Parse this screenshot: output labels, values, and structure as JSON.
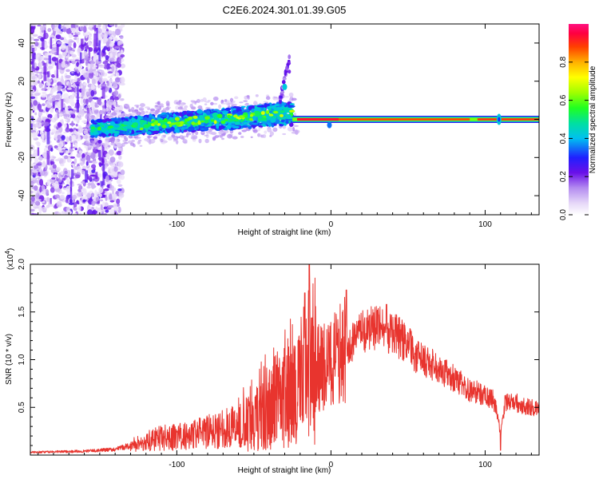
{
  "title": "C2E6.2024.301.01.39.G05",
  "chart_data": [
    {
      "type": "heatmap",
      "xlabel": "Height of straight line (km)",
      "ylabel": "Frequency (Hz)",
      "xlim": [
        -195,
        135
      ],
      "ylim": [
        -50,
        50
      ],
      "xticks": [
        -100,
        0,
        100
      ],
      "yticks": [
        -40,
        -20,
        0,
        20,
        40
      ],
      "colorbar": {
        "label": "Normalized spectral amplitude",
        "range": [
          0,
          1
        ],
        "ticks": [
          0.0,
          0.2,
          0.4,
          0.6,
          0.8
        ],
        "tick_labels": [
          "0.0",
          "0.2",
          "0.4",
          "0.6",
          "0.8"
        ]
      },
      "features": {
        "noise_region_x": [
          -195,
          -135
        ],
        "broad_signal_x": [
          -155,
          -25
        ],
        "broad_signal_center_start_hz": -5,
        "broad_signal_center_end_hz": 3,
        "narrow_line_x": [
          -25,
          135
        ],
        "narrow_line_hz": 0,
        "flare_x": [
          -33,
          -27
        ],
        "flare_hz": [
          10,
          32
        ]
      }
    },
    {
      "type": "line",
      "xlabel": "Height of straight line (km)",
      "ylabel": "SNR (10 * v/v)",
      "multiplier_label": "(x10",
      "multiplier_exponent": "4",
      "xlim": [
        -195,
        135
      ],
      "ylim": [
        0,
        2.0
      ],
      "xticks": [
        -100,
        0,
        100
      ],
      "yticks": [
        0.5,
        1.0,
        1.5,
        2.0
      ],
      "ytick_labels": [
        "0.5",
        "1.0",
        "1.5",
        "2.0"
      ],
      "series": [
        {
          "color": "#e8342e",
          "envelope_x": [
            -195,
            -160,
            -140,
            -125,
            -110,
            -95,
            -80,
            -65,
            -50,
            -40,
            -30,
            -20,
            -15,
            -10,
            -5,
            0,
            5,
            10,
            15,
            20,
            25,
            30,
            35,
            40,
            45,
            50,
            55,
            60,
            65,
            70,
            75,
            80,
            85,
            90,
            95,
            100,
            105,
            108,
            110,
            113,
            118,
            125,
            135
          ],
          "envelope_y": [
            0.03,
            0.04,
            0.06,
            0.12,
            0.18,
            0.2,
            0.24,
            0.3,
            0.38,
            0.52,
            0.62,
            0.72,
            0.8,
            0.9,
            0.92,
            0.95,
            1.05,
            1.1,
            1.2,
            1.28,
            1.32,
            1.34,
            1.3,
            1.28,
            1.22,
            1.15,
            1.05,
            0.98,
            0.95,
            0.92,
            0.85,
            0.8,
            0.74,
            0.68,
            0.66,
            0.62,
            0.58,
            0.45,
            0.2,
            0.55,
            0.56,
            0.52,
            0.48
          ]
        }
      ],
      "spikes": [
        {
          "x": -14,
          "y": 2.0
        },
        {
          "x": -17,
          "y": 1.7
        },
        {
          "x": 10,
          "y": 1.73
        },
        {
          "x": 36,
          "y": 1.58
        },
        {
          "x": 110,
          "y": 0.05
        }
      ]
    }
  ]
}
